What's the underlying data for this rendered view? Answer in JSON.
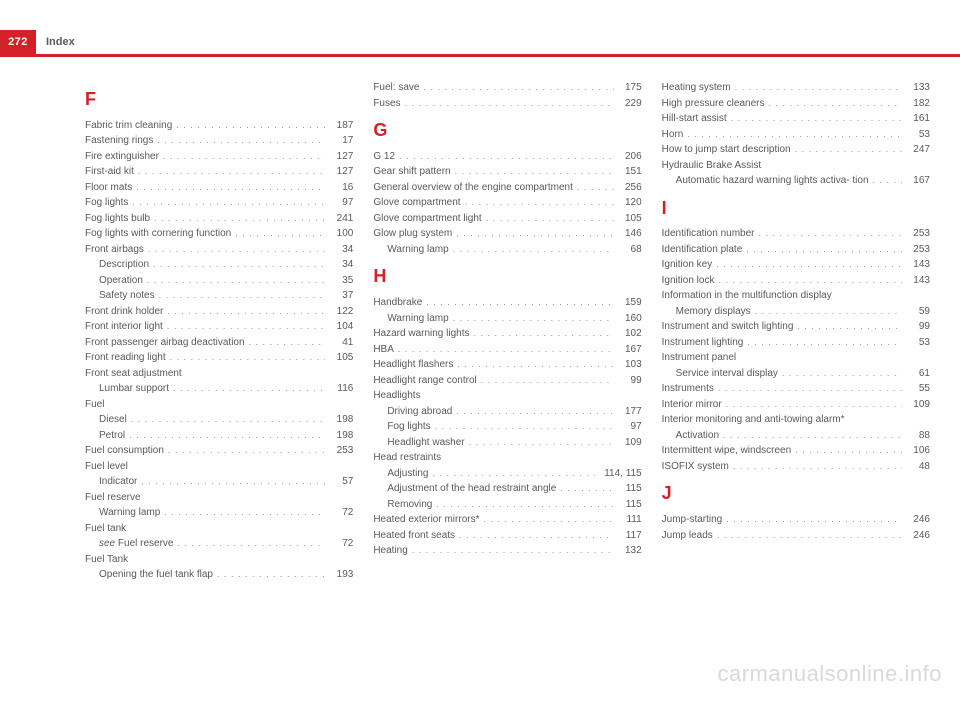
{
  "header": {
    "page_number": "272",
    "title": "Index"
  },
  "watermark": "carmanualsonline.info",
  "sections": {
    "F": {
      "letter": "F",
      "items": [
        {
          "label": "Fabric trim cleaning",
          "page": "187"
        },
        {
          "label": "Fastening rings",
          "page": "17"
        },
        {
          "label": "Fire extinguisher",
          "page": "127"
        },
        {
          "label": "First-aid kit",
          "page": "127"
        },
        {
          "label": "Floor mats",
          "page": "16"
        },
        {
          "label": "Fog lights",
          "page": "97"
        },
        {
          "label": "Fog lights bulb",
          "page": "241"
        },
        {
          "label": "Fog lights with cornering function",
          "page": "100"
        },
        {
          "label": "Front airbags",
          "page": "34"
        },
        {
          "label": "Description",
          "page": "34",
          "sub": true
        },
        {
          "label": "Operation",
          "page": "35",
          "sub": true
        },
        {
          "label": "Safety notes",
          "page": "37",
          "sub": true
        },
        {
          "label": "Front drink holder",
          "page": "122"
        },
        {
          "label": "Front interior light",
          "page": "104"
        },
        {
          "label": "Front passenger airbag deactivation",
          "page": "41"
        },
        {
          "label": "Front reading light",
          "page": "105"
        },
        {
          "label": "Front seat adjustment",
          "noline": true
        },
        {
          "label": "Lumbar support",
          "page": "116",
          "sub": true
        },
        {
          "label": "Fuel",
          "noline": true
        },
        {
          "label": "Diesel",
          "page": "198",
          "sub": true
        },
        {
          "label": "Petrol",
          "page": "198",
          "sub": true
        },
        {
          "label": "Fuel consumption",
          "page": "253"
        },
        {
          "label": "Fuel level",
          "noline": true
        },
        {
          "label": "Indicator",
          "page": "57",
          "sub": true
        },
        {
          "label": "Fuel reserve",
          "noline": true
        },
        {
          "label": "Warning lamp",
          "page": "72",
          "sub": true
        },
        {
          "label": "Fuel tank",
          "noline": true
        },
        {
          "label_html": "<span class='ital'>see</span> Fuel reserve",
          "page": "72",
          "sub": true
        },
        {
          "label": "Fuel Tank",
          "noline": true
        },
        {
          "label": "Opening the fuel tank flap",
          "page": "193",
          "sub": true
        }
      ]
    },
    "F2": {
      "items": [
        {
          "label": "Fuel: save",
          "page": "175"
        },
        {
          "label": "Fuses",
          "page": "229"
        }
      ]
    },
    "G": {
      "letter": "G",
      "items": [
        {
          "label": "G 12",
          "page": "206"
        },
        {
          "label": "Gear shift pattern",
          "page": "151"
        },
        {
          "label": "General overview of the engine compartment",
          "page": "256"
        },
        {
          "label": "Glove compartment",
          "page": "120"
        },
        {
          "label": "Glove compartment light",
          "page": "105"
        },
        {
          "label": "Glow plug system",
          "page": "146"
        },
        {
          "label": "Warning lamp",
          "page": "68",
          "sub": true
        }
      ]
    },
    "H": {
      "letter": "H",
      "items": [
        {
          "label": "Handbrake",
          "page": "159"
        },
        {
          "label": "Warning lamp",
          "page": "160",
          "sub": true
        },
        {
          "label": "Hazard warning lights",
          "page": "102"
        },
        {
          "label": "HBA",
          "page": "167"
        },
        {
          "label": "Headlight flashers",
          "page": "103"
        },
        {
          "label": "Headlight range control",
          "page": "99"
        },
        {
          "label": "Headlights",
          "noline": true
        },
        {
          "label": "Driving abroad",
          "page": "177",
          "sub": true
        },
        {
          "label": "Fog lights",
          "page": "97",
          "sub": true
        },
        {
          "label": "Headlight washer",
          "page": "109",
          "sub": true
        },
        {
          "label": "Head restraints",
          "noline": true
        },
        {
          "label": "Adjusting",
          "page": "114, 115",
          "sub": true
        },
        {
          "label": "Adjustment of the head restraint angle",
          "page": "115",
          "sub": true
        },
        {
          "label": "Removing",
          "page": "115",
          "sub": true
        },
        {
          "label": "Heated exterior mirrors*",
          "page": "111"
        },
        {
          "label": "Heated front seats",
          "page": "117"
        },
        {
          "label": "Heating",
          "page": "132"
        }
      ]
    },
    "H2": {
      "items": [
        {
          "label": "Heating system",
          "page": "133"
        },
        {
          "label": "High pressure cleaners",
          "page": "182"
        },
        {
          "label": "Hill-start assist",
          "page": "161"
        },
        {
          "label": "Horn",
          "page": "53"
        },
        {
          "label": "How to jump start description",
          "page": "247"
        },
        {
          "label": "Hydraulic Brake Assist",
          "noline": true
        },
        {
          "label": "Automatic hazard warning lights activa-\n tion",
          "page": "167",
          "sub": true
        }
      ]
    },
    "I": {
      "letter": "I",
      "items": [
        {
          "label": "Identification number",
          "page": "253"
        },
        {
          "label": "Identification plate",
          "page": "253"
        },
        {
          "label": "Ignition key",
          "page": "143"
        },
        {
          "label": "Ignition lock",
          "page": "143"
        },
        {
          "label": "Information in the multifunction display",
          "noline": true
        },
        {
          "label": "Memory displays",
          "page": "59",
          "sub": true
        },
        {
          "label": "Instrument and switch lighting",
          "page": "99"
        },
        {
          "label": "Instrument lighting",
          "page": "53"
        },
        {
          "label": "Instrument panel",
          "noline": true
        },
        {
          "label": "Service interval display",
          "page": "61",
          "sub": true
        },
        {
          "label": "Instruments",
          "page": "55"
        },
        {
          "label": "Interior mirror",
          "page": "109"
        },
        {
          "label": "Interior monitoring and anti-towing alarm*",
          "noline": true
        },
        {
          "label": "Activation",
          "page": "88",
          "sub": true
        },
        {
          "label": "Intermittent wipe, windscreen",
          "page": "106"
        },
        {
          "label": "ISOFIX system",
          "page": "48"
        }
      ]
    },
    "J": {
      "letter": "J",
      "items": [
        {
          "label": "Jump-starting",
          "page": "246"
        },
        {
          "label": "Jump leads",
          "page": "246"
        }
      ]
    }
  }
}
